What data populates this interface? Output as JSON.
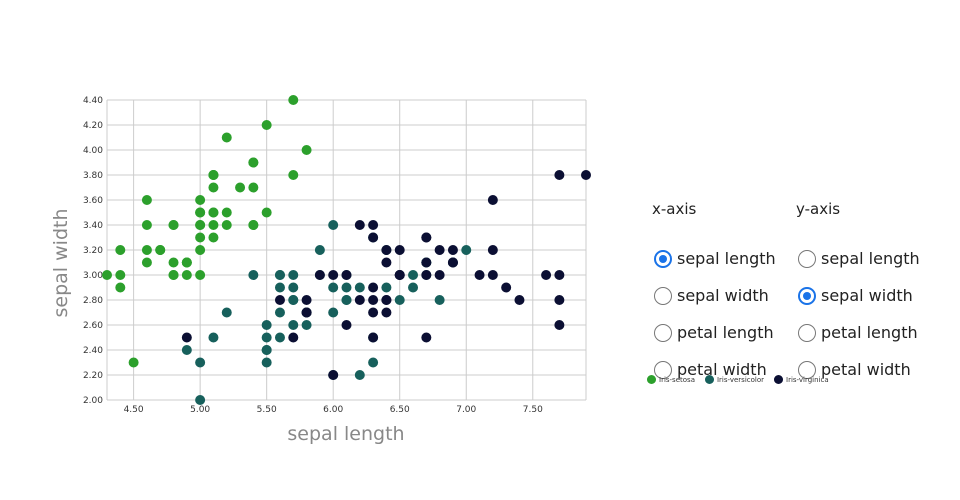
{
  "chart_data": {
    "type": "scatter",
    "xlabel": "sepal length",
    "ylabel": "sepal width",
    "xlim": [
      4.3,
      7.9
    ],
    "ylim": [
      2.0,
      4.4
    ],
    "xticks": [
      "4.50",
      "5.00",
      "5.50",
      "6.00",
      "6.50",
      "7.00",
      "7.50"
    ],
    "xtick_values": [
      4.5,
      5.0,
      5.5,
      6.0,
      6.5,
      7.0,
      7.5
    ],
    "yticks": [
      "2.00",
      "2.20",
      "2.40",
      "2.60",
      "2.80",
      "3.00",
      "3.20",
      "3.40",
      "3.60",
      "3.80",
      "4.00",
      "4.20",
      "4.40"
    ],
    "ytick_values": [
      2.0,
      2.2,
      2.4,
      2.6,
      2.8,
      3.0,
      3.2,
      3.4,
      3.6,
      3.8,
      4.0,
      4.2,
      4.4
    ],
    "series": [
      {
        "name": "Iris-setosa",
        "color": "#2ca02c",
        "points": [
          [
            5.1,
            3.5
          ],
          [
            4.9,
            3.0
          ],
          [
            4.7,
            3.2
          ],
          [
            4.6,
            3.1
          ],
          [
            5.0,
            3.6
          ],
          [
            5.4,
            3.9
          ],
          [
            4.6,
            3.4
          ],
          [
            5.0,
            3.4
          ],
          [
            4.4,
            2.9
          ],
          [
            4.9,
            3.1
          ],
          [
            5.4,
            3.7
          ],
          [
            4.8,
            3.4
          ],
          [
            4.8,
            3.0
          ],
          [
            4.3,
            3.0
          ],
          [
            5.8,
            4.0
          ],
          [
            5.7,
            4.4
          ],
          [
            5.4,
            3.9
          ],
          [
            5.1,
            3.5
          ],
          [
            5.7,
            3.8
          ],
          [
            5.1,
            3.8
          ],
          [
            5.4,
            3.4
          ],
          [
            5.1,
            3.7
          ],
          [
            4.6,
            3.6
          ],
          [
            5.1,
            3.3
          ],
          [
            4.8,
            3.4
          ],
          [
            5.0,
            3.0
          ],
          [
            5.0,
            3.4
          ],
          [
            5.2,
            3.5
          ],
          [
            5.2,
            3.4
          ],
          [
            4.7,
            3.2
          ],
          [
            4.8,
            3.1
          ],
          [
            5.4,
            3.4
          ],
          [
            5.2,
            4.1
          ],
          [
            5.5,
            4.2
          ],
          [
            4.9,
            3.1
          ],
          [
            5.0,
            3.2
          ],
          [
            5.5,
            3.5
          ],
          [
            4.9,
            3.1
          ],
          [
            4.4,
            3.0
          ],
          [
            5.1,
            3.4
          ],
          [
            5.0,
            3.5
          ],
          [
            4.5,
            2.3
          ],
          [
            4.4,
            3.2
          ],
          [
            5.0,
            3.5
          ],
          [
            5.1,
            3.8
          ],
          [
            4.8,
            3.0
          ],
          [
            5.1,
            3.8
          ],
          [
            4.6,
            3.2
          ],
          [
            5.3,
            3.7
          ],
          [
            5.0,
            3.3
          ]
        ]
      },
      {
        "name": "Iris-versicolor",
        "color": "#17605c",
        "points": [
          [
            7.0,
            3.2
          ],
          [
            6.4,
            3.2
          ],
          [
            6.9,
            3.1
          ],
          [
            5.5,
            2.3
          ],
          [
            6.5,
            2.8
          ],
          [
            5.7,
            2.8
          ],
          [
            6.3,
            3.3
          ],
          [
            4.9,
            2.4
          ],
          [
            6.6,
            2.9
          ],
          [
            5.2,
            2.7
          ],
          [
            5.0,
            2.0
          ],
          [
            5.9,
            3.0
          ],
          [
            6.0,
            2.2
          ],
          [
            6.1,
            2.9
          ],
          [
            5.6,
            2.9
          ],
          [
            6.7,
            3.1
          ],
          [
            5.6,
            3.0
          ],
          [
            5.8,
            2.7
          ],
          [
            6.2,
            2.2
          ],
          [
            5.6,
            2.5
          ],
          [
            5.9,
            3.2
          ],
          [
            6.1,
            2.8
          ],
          [
            6.3,
            2.5
          ],
          [
            6.1,
            2.8
          ],
          [
            6.4,
            2.9
          ],
          [
            6.6,
            3.0
          ],
          [
            6.8,
            2.8
          ],
          [
            6.7,
            3.0
          ],
          [
            6.0,
            2.9
          ],
          [
            5.7,
            2.6
          ],
          [
            5.5,
            2.4
          ],
          [
            5.5,
            2.4
          ],
          [
            5.8,
            2.7
          ],
          [
            6.0,
            2.7
          ],
          [
            5.4,
            3.0
          ],
          [
            6.0,
            3.4
          ],
          [
            6.7,
            3.1
          ],
          [
            6.3,
            2.3
          ],
          [
            5.6,
            3.0
          ],
          [
            5.5,
            2.5
          ],
          [
            5.5,
            2.6
          ],
          [
            6.1,
            3.0
          ],
          [
            5.8,
            2.6
          ],
          [
            5.0,
            2.3
          ],
          [
            5.6,
            2.7
          ],
          [
            5.7,
            3.0
          ],
          [
            5.7,
            2.9
          ],
          [
            6.2,
            2.9
          ],
          [
            5.1,
            2.5
          ],
          [
            5.7,
            2.8
          ]
        ]
      },
      {
        "name": "Iris-virginica",
        "color": "#0b0f33",
        "points": [
          [
            6.3,
            3.3
          ],
          [
            5.8,
            2.7
          ],
          [
            7.1,
            3.0
          ],
          [
            6.3,
            2.9
          ],
          [
            6.5,
            3.0
          ],
          [
            7.6,
            3.0
          ],
          [
            4.9,
            2.5
          ],
          [
            7.3,
            2.9
          ],
          [
            6.7,
            2.5
          ],
          [
            7.2,
            3.6
          ],
          [
            6.5,
            3.2
          ],
          [
            6.4,
            2.7
          ],
          [
            6.8,
            3.0
          ],
          [
            5.7,
            2.5
          ],
          [
            5.8,
            2.8
          ],
          [
            6.4,
            3.2
          ],
          [
            6.5,
            3.0
          ],
          [
            7.7,
            3.8
          ],
          [
            7.7,
            2.6
          ],
          [
            6.0,
            2.2
          ],
          [
            6.9,
            3.2
          ],
          [
            5.6,
            2.8
          ],
          [
            7.7,
            2.8
          ],
          [
            6.3,
            2.7
          ],
          [
            6.7,
            3.3
          ],
          [
            7.2,
            3.2
          ],
          [
            6.2,
            2.8
          ],
          [
            6.1,
            3.0
          ],
          [
            6.4,
            2.8
          ],
          [
            7.2,
            3.0
          ],
          [
            7.4,
            2.8
          ],
          [
            7.9,
            3.8
          ],
          [
            6.4,
            2.8
          ],
          [
            6.3,
            2.8
          ],
          [
            6.1,
            2.6
          ],
          [
            7.7,
            3.0
          ],
          [
            6.3,
            3.4
          ],
          [
            6.4,
            3.1
          ],
          [
            6.0,
            3.0
          ],
          [
            6.9,
            3.1
          ],
          [
            6.7,
            3.1
          ],
          [
            6.9,
            3.1
          ],
          [
            5.8,
            2.7
          ],
          [
            6.8,
            3.2
          ],
          [
            6.7,
            3.3
          ],
          [
            6.7,
            3.0
          ],
          [
            6.3,
            2.5
          ],
          [
            6.5,
            3.0
          ],
          [
            6.2,
            3.4
          ],
          [
            5.9,
            3.0
          ]
        ]
      }
    ]
  },
  "controls": {
    "x_axis": {
      "title": "x-axis",
      "options": [
        "sepal length",
        "sepal width",
        "petal length",
        "petal width"
      ],
      "selected": 0
    },
    "y_axis": {
      "title": "y-axis",
      "options": [
        "sepal length",
        "sepal width",
        "petal length",
        "petal width"
      ],
      "selected": 1
    }
  }
}
